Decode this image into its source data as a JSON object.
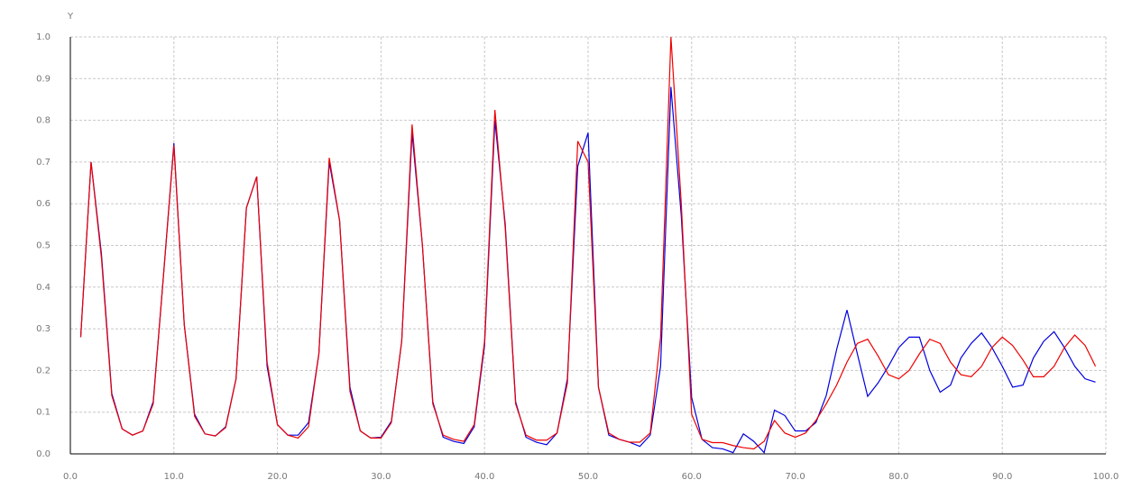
{
  "chart_data": {
    "type": "line",
    "y_label": "Y",
    "x": [
      1,
      2,
      3,
      4,
      5,
      6,
      7,
      8,
      9,
      10,
      11,
      12,
      13,
      14,
      15,
      16,
      17,
      18,
      19,
      20,
      21,
      22,
      23,
      24,
      25,
      26,
      27,
      28,
      29,
      30,
      31,
      32,
      33,
      34,
      35,
      36,
      37,
      38,
      39,
      40,
      41,
      42,
      43,
      44,
      45,
      46,
      47,
      48,
      49,
      50,
      51,
      52,
      53,
      54,
      55,
      56,
      57,
      58,
      59,
      60,
      61,
      62,
      63,
      64,
      65,
      66,
      67,
      68,
      69,
      70,
      71,
      72,
      73,
      74,
      75,
      76,
      77,
      78,
      79,
      80,
      81,
      82,
      83,
      84,
      85,
      86,
      87,
      88,
      89,
      90,
      91,
      92,
      93,
      94,
      95,
      96,
      97,
      98,
      99
    ],
    "series": [
      {
        "color": "#0000dd",
        "values": [
          0.28,
          0.7,
          0.48,
          0.145,
          0.06,
          0.045,
          0.055,
          0.125,
          0.43,
          0.745,
          0.31,
          0.095,
          0.048,
          0.043,
          0.065,
          0.18,
          0.59,
          0.665,
          0.21,
          0.07,
          0.045,
          0.045,
          0.075,
          0.24,
          0.7,
          0.56,
          0.16,
          0.055,
          0.038,
          0.04,
          0.078,
          0.27,
          0.77,
          0.5,
          0.125,
          0.04,
          0.03,
          0.025,
          0.065,
          0.26,
          0.8,
          0.55,
          0.125,
          0.04,
          0.028,
          0.022,
          0.05,
          0.18,
          0.69,
          0.77,
          0.16,
          0.045,
          0.035,
          0.028,
          0.018,
          0.045,
          0.21,
          0.88,
          0.57,
          0.135,
          0.035,
          0.015,
          0.012,
          0.003,
          0.048,
          0.03,
          0.003,
          0.105,
          0.092,
          0.055,
          0.055,
          0.075,
          0.14,
          0.25,
          0.345,
          0.24,
          0.138,
          0.17,
          0.21,
          0.255,
          0.28,
          0.28,
          0.2,
          0.148,
          0.165,
          0.23,
          0.265,
          0.29,
          0.255,
          0.21,
          0.16,
          0.165,
          0.23,
          0.27,
          0.293,
          0.255,
          0.21,
          0.18,
          0.172
        ]
      },
      {
        "color": "#ee0000",
        "values": [
          0.28,
          0.7,
          0.47,
          0.14,
          0.06,
          0.045,
          0.055,
          0.12,
          0.43,
          0.74,
          0.31,
          0.09,
          0.048,
          0.043,
          0.063,
          0.18,
          0.59,
          0.665,
          0.22,
          0.07,
          0.045,
          0.038,
          0.065,
          0.24,
          0.71,
          0.56,
          0.15,
          0.055,
          0.038,
          0.038,
          0.075,
          0.27,
          0.79,
          0.5,
          0.12,
          0.045,
          0.035,
          0.03,
          0.07,
          0.27,
          0.825,
          0.54,
          0.12,
          0.045,
          0.033,
          0.033,
          0.05,
          0.17,
          0.75,
          0.7,
          0.16,
          0.05,
          0.035,
          0.028,
          0.028,
          0.05,
          0.28,
          1.0,
          0.6,
          0.095,
          0.035,
          0.027,
          0.027,
          0.02,
          0.015,
          0.012,
          0.03,
          0.08,
          0.05,
          0.04,
          0.05,
          0.08,
          0.12,
          0.165,
          0.22,
          0.265,
          0.275,
          0.235,
          0.19,
          0.18,
          0.2,
          0.24,
          0.275,
          0.265,
          0.22,
          0.19,
          0.185,
          0.21,
          0.255,
          0.28,
          0.26,
          0.225,
          0.185,
          0.185,
          0.21,
          0.255,
          0.285,
          0.26,
          0.21
        ]
      }
    ],
    "xlim": [
      0,
      100
    ],
    "xticks": [
      {
        "value": 0,
        "label": "0.0"
      },
      {
        "value": 10,
        "label": "10.0"
      },
      {
        "value": 20,
        "label": "20.0"
      },
      {
        "value": 30,
        "label": "30.0"
      },
      {
        "value": 40,
        "label": "40.0"
      },
      {
        "value": 50,
        "label": "50.0"
      },
      {
        "value": 60,
        "label": "60.0"
      },
      {
        "value": 70,
        "label": "70.0"
      },
      {
        "value": 80,
        "label": "80.0"
      },
      {
        "value": 90,
        "label": "90.0"
      },
      {
        "value": 100,
        "label": "100.0"
      }
    ],
    "ylim": [
      0,
      1
    ],
    "yticks": [
      {
        "value": 0,
        "label": "0.0"
      },
      0.1,
      0.2,
      0.3,
      0.4,
      0.5,
      0.6,
      0.7,
      0.8,
      0.9,
      {
        "value": 1,
        "label": "1.0"
      }
    ],
    "grid": true
  }
}
